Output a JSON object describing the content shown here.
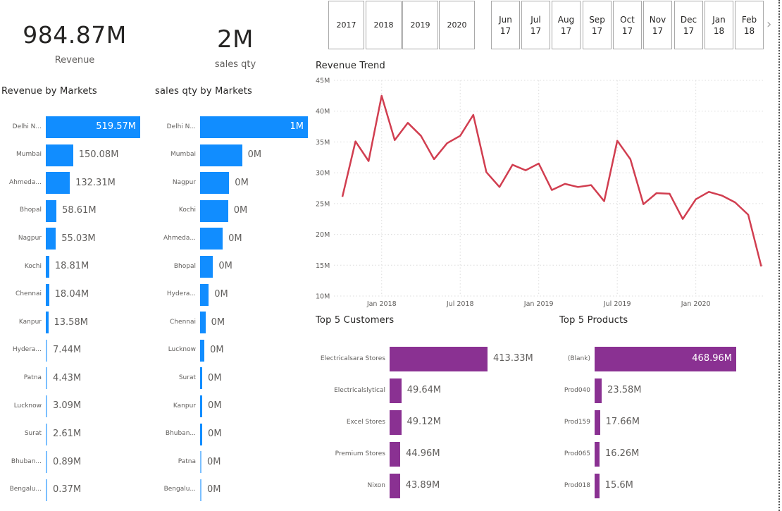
{
  "kpis": {
    "revenue": {
      "value": "984.87M",
      "label": "Revenue"
    },
    "sales_qty": {
      "value": "2M",
      "label": "sales qty"
    }
  },
  "year_slicer": [
    "2017",
    "2018",
    "2019",
    "2020"
  ],
  "month_slicer": [
    {
      "month": "Jun",
      "year": "17"
    },
    {
      "month": "Jul",
      "year": "17"
    },
    {
      "month": "Aug",
      "year": "17"
    },
    {
      "month": "Sep",
      "year": "17"
    },
    {
      "month": "Oct",
      "year": "17"
    },
    {
      "month": "Nov",
      "year": "17"
    },
    {
      "month": "Dec",
      "year": "17"
    },
    {
      "month": "Jan",
      "year": "18"
    },
    {
      "month": "Feb",
      "year": "18"
    }
  ],
  "slicer_next_icon": "›",
  "colors": {
    "market_bar": "#118DFF",
    "top5_bar": "#8A3192",
    "trend_line": "#D13E50"
  },
  "chart_data": [
    {
      "id": "revenue_by_markets",
      "type": "bar",
      "orientation": "horizontal",
      "title": "Revenue by Markets",
      "categories": [
        "Delhi N...",
        "Mumbai",
        "Ahmeda...",
        "Bhopal",
        "Nagpur",
        "Kochi",
        "Chennai",
        "Kanpur",
        "Hydera...",
        "Patna",
        "Lucknow",
        "Surat",
        "Bhuban...",
        "Bengalu..."
      ],
      "values": [
        519.57,
        150.08,
        132.31,
        58.61,
        55.03,
        18.81,
        18.04,
        13.58,
        7.44,
        4.43,
        3.09,
        2.61,
        0.89,
        0.37
      ],
      "labels": [
        "519.57M",
        "150.08M",
        "132.31M",
        "58.61M",
        "55.03M",
        "18.81M",
        "18.04M",
        "13.58M",
        "7.44M",
        "4.43M",
        "3.09M",
        "2.61M",
        "0.89M",
        "0.37M"
      ],
      "unit": "M"
    },
    {
      "id": "sales_qty_by_markets",
      "type": "bar",
      "orientation": "horizontal",
      "title": "sales qty by Markets",
      "categories": [
        "Delhi N...",
        "Mumbai",
        "Nagpur",
        "Kochi",
        "Ahmeda...",
        "Bhopal",
        "Hydera...",
        "Chennai",
        "Lucknow",
        "Surat",
        "Kanpur",
        "Bhuban...",
        "Patna",
        "Bengalu..."
      ],
      "values": [
        1.0,
        0.39,
        0.27,
        0.26,
        0.21,
        0.12,
        0.08,
        0.05,
        0.04,
        0.02,
        0.02,
        0.02,
        0.01,
        0.01
      ],
      "labels": [
        "1M",
        "0M",
        "0M",
        "0M",
        "0M",
        "0M",
        "0M",
        "0M",
        "0M",
        "0M",
        "0M",
        "0M",
        "0M",
        "0M"
      ],
      "unit": "M"
    },
    {
      "id": "revenue_trend",
      "type": "line",
      "title": "Revenue Trend",
      "x": [
        "2017-10",
        "2017-11",
        "2017-12",
        "2018-01",
        "2018-02",
        "2018-03",
        "2018-04",
        "2018-05",
        "2018-06",
        "2018-07",
        "2018-08",
        "2018-09",
        "2018-10",
        "2018-11",
        "2018-12",
        "2019-01",
        "2019-02",
        "2019-03",
        "2019-04",
        "2019-05",
        "2019-06",
        "2019-07",
        "2019-08",
        "2019-09",
        "2019-10",
        "2019-11",
        "2019-12",
        "2020-01",
        "2020-02",
        "2020-03",
        "2020-04",
        "2020-05",
        "2020-06"
      ],
      "values": [
        26.1,
        35.1,
        31.9,
        42.5,
        35.3,
        38.1,
        36.0,
        32.2,
        34.8,
        36.0,
        39.4,
        30.1,
        27.7,
        31.3,
        30.4,
        31.5,
        27.2,
        28.2,
        27.7,
        28.0,
        25.4,
        35.2,
        32.2,
        24.9,
        26.7,
        26.6,
        22.5,
        25.7,
        26.9,
        26.3,
        25.2,
        23.2,
        14.8
      ],
      "unit": "M",
      "ylim": [
        10,
        45
      ],
      "yticks": [
        10,
        15,
        20,
        25,
        30,
        35,
        40,
        45
      ],
      "ytick_labels": [
        "10M",
        "15M",
        "20M",
        "25M",
        "30M",
        "35M",
        "40M",
        "45M"
      ],
      "xticks": [
        "2018-01",
        "2018-07",
        "2019-01",
        "2019-07",
        "2020-01"
      ],
      "xtick_labels": [
        "Jan 2018",
        "Jul 2018",
        "Jan 2019",
        "Jul 2019",
        "Jan 2020"
      ],
      "grid": true,
      "xlabel": "",
      "ylabel": ""
    },
    {
      "id": "top5_customers",
      "type": "bar",
      "orientation": "horizontal",
      "title": "Top 5 Customers",
      "categories": [
        "Electricalsara Stores",
        "Electricalslytical",
        "Excel Stores",
        "Premium Stores",
        "Nixon"
      ],
      "values": [
        413.33,
        49.64,
        49.12,
        44.96,
        43.89
      ],
      "labels": [
        "413.33M",
        "49.64M",
        "49.12M",
        "44.96M",
        "43.89M"
      ],
      "unit": "M"
    },
    {
      "id": "top5_products",
      "type": "bar",
      "orientation": "horizontal",
      "title": "Top 5 Products",
      "categories": [
        "(Blank)",
        "Prod040",
        "Prod159",
        "Prod065",
        "Prod018"
      ],
      "values": [
        468.96,
        23.58,
        17.66,
        16.26,
        15.6
      ],
      "labels": [
        "468.96M",
        "23.58M",
        "17.66M",
        "16.26M",
        "15.6M"
      ],
      "unit": "M"
    }
  ]
}
